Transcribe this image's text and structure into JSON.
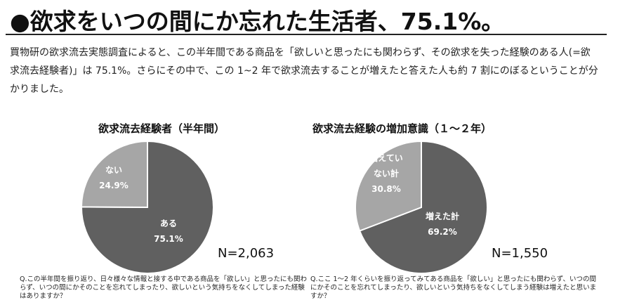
{
  "headline": "●欲求をいつの間にか忘れた生活者、75.1%。",
  "intro": "買物研の欲求流去実態調査によると、この半年間である商品を「欲しいと思ったにも関わらず、その欲求を失った経験のある人(=欲求流去経験者)」は 75.1%。さらにその中で、この 1~2 年で欲求流去することが増えたと答えた人も約 7 割にのぼるということが分かりました。",
  "colors": {
    "dark": "#606060",
    "light": "#a6a6a6",
    "border": "#ffffff"
  },
  "chart_data": [
    {
      "type": "pie",
      "title": "欲求流去経験者（半年間）",
      "slices": [
        {
          "label": "ある",
          "value": 75.1,
          "value_label": "75.1%",
          "color": "#606060"
        },
        {
          "label": "ない",
          "value": 24.9,
          "value_label": "24.9%",
          "color": "#a6a6a6"
        }
      ],
      "n_label": "N=2,063",
      "question": "Q.この半年間を振り返り、日々様々な情報と接する中である商品を「欲しい」と思ったにも関わらず、いつの間にかそのことを忘れてしまったり、欲しいという気持ちをなくしてしまった経験はありますか？"
    },
    {
      "type": "pie",
      "title": "欲求流去経験の増加意識（１～２年）",
      "slices": [
        {
          "label": "増えた計",
          "value": 69.2,
          "value_label": "69.2%",
          "color": "#606060"
        },
        {
          "label": "増えていない計",
          "value": 30.8,
          "value_label": "30.8%",
          "color": "#a6a6a6"
        }
      ],
      "n_label": "N=1,550",
      "question": "Q.ここ 1～2 年くらいを振り返ってみてある商品を「欲しい」と思ったにも関わらず、いつの間にかそのことを忘れてしまったり、欲しいという気持ちをなくしてしまう経験は増えたと思いますか？"
    }
  ]
}
